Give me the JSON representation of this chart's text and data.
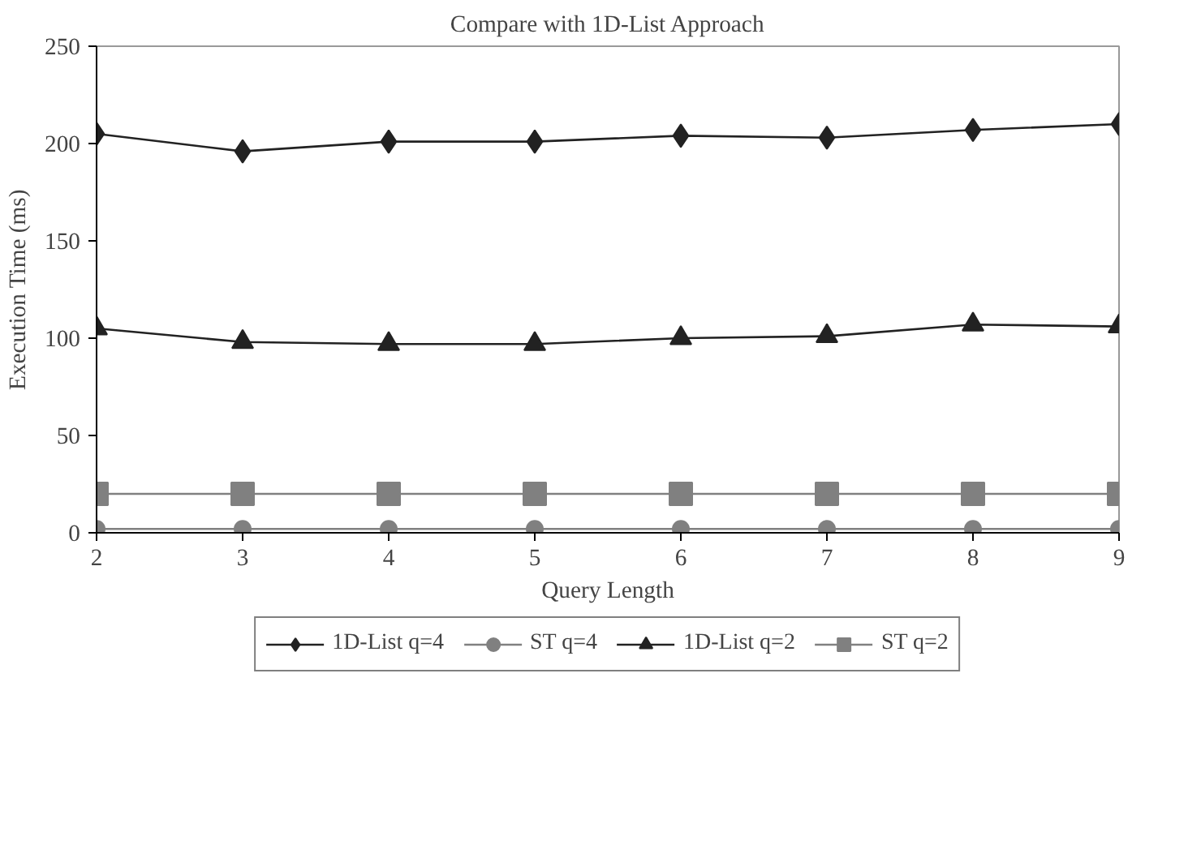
{
  "chart_data": {
    "type": "line",
    "title": "Compare with 1D-List Approach",
    "xlabel": "Query Length",
    "ylabel": "Execution Time (ms)",
    "x": [
      2,
      3,
      4,
      5,
      6,
      7,
      8,
      9
    ],
    "series": [
      {
        "name": "1D-List q=4",
        "color": "#222222",
        "marker": "diamond",
        "values": [
          205,
          196,
          201,
          201,
          204,
          203,
          207,
          210
        ]
      },
      {
        "name": "ST q=4",
        "color": "#808080",
        "marker": "circle",
        "values": [
          2,
          2,
          2,
          2,
          2,
          2,
          2,
          2
        ]
      },
      {
        "name": "1D-List q=2",
        "color": "#222222",
        "marker": "triangle",
        "values": [
          105,
          98,
          97,
          97,
          100,
          101,
          107,
          106
        ]
      },
      {
        "name": "ST q=2",
        "color": "#808080",
        "marker": "square",
        "values": [
          20,
          20,
          20,
          20,
          20,
          20,
          20,
          20
        ]
      }
    ],
    "xlim": [
      2,
      9
    ],
    "xticks": [
      2,
      3,
      4,
      5,
      6,
      7,
      8,
      9
    ],
    "ylim": [
      0,
      250
    ],
    "yticks": [
      0,
      50,
      100,
      150,
      200,
      250
    ],
    "grid": false,
    "legend": "bottom",
    "line_style": "solid"
  }
}
